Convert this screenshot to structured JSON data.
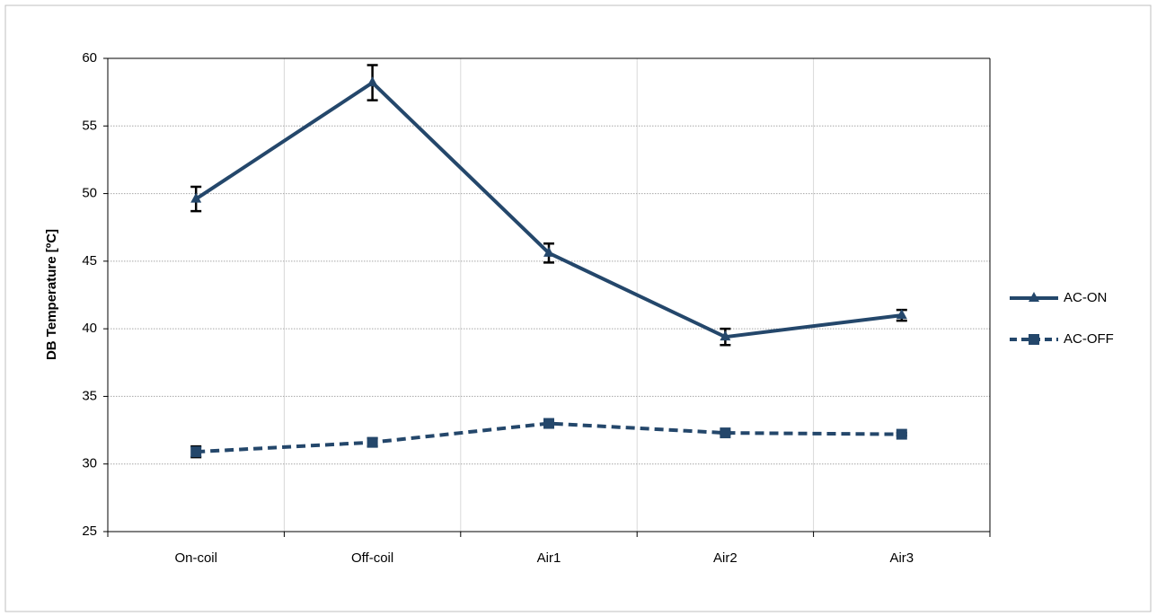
{
  "chart_data": {
    "type": "line",
    "ylabel": "DB Temperature [ºC]",
    "categories": [
      "On-coil",
      "Off-coil",
      "Air1",
      "Air2",
      "Air3"
    ],
    "series": [
      {
        "name": "AC-ON",
        "color": "#24476b",
        "marker": "triangle",
        "dash": false,
        "values": [
          49.6,
          58.2,
          45.6,
          39.4,
          41.0
        ],
        "errors": [
          0.9,
          1.3,
          0.7,
          0.6,
          0.4
        ]
      },
      {
        "name": "AC-OFF",
        "color": "#24476b",
        "marker": "square",
        "dash": true,
        "values": [
          30.9,
          31.6,
          33.0,
          32.3,
          32.2
        ],
        "errors": [
          0.4,
          0.3,
          0.2,
          0.1,
          0.1
        ]
      }
    ],
    "ylim": [
      25,
      60
    ],
    "yticks": [
      25,
      30,
      35,
      40,
      45,
      50,
      55,
      60
    ],
    "grid": true,
    "legend": "right"
  }
}
